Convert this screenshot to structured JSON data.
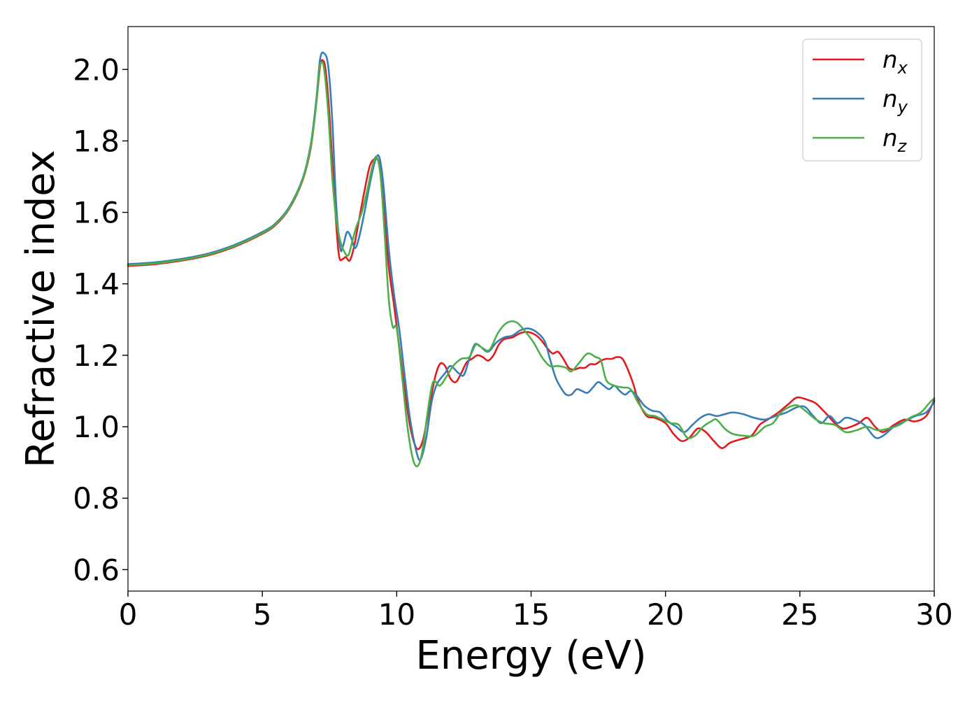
{
  "chart_data": {
    "type": "line",
    "xlabel": "Energy (eV)",
    "ylabel": "Refractive index",
    "xlim": [
      0,
      30
    ],
    "ylim": [
      0.54,
      2.12
    ],
    "xticks": [
      0,
      5,
      10,
      15,
      20,
      25,
      30
    ],
    "xtick_labels": [
      "0",
      "5",
      "10",
      "15",
      "20",
      "25",
      "30"
    ],
    "yticks": [
      0.6,
      0.8,
      1.0,
      1.2,
      1.4,
      1.6,
      1.8,
      2.0
    ],
    "ytick_labels": [
      "0.6",
      "0.8",
      "1.0",
      "1.2",
      "1.4",
      "1.6",
      "1.8",
      "2.0"
    ],
    "grid": false,
    "legend_position": "top-right",
    "series": [
      {
        "id": "nx",
        "symbol": "n",
        "subscript": "x",
        "color": "#e41a1c",
        "points": [
          [
            0,
            1.45
          ],
          [
            1,
            1.455
          ],
          [
            2,
            1.465
          ],
          [
            3,
            1.48
          ],
          [
            4,
            1.505
          ],
          [
            5,
            1.54
          ],
          [
            5.5,
            1.565
          ],
          [
            6,
            1.61
          ],
          [
            6.5,
            1.69
          ],
          [
            6.8,
            1.78
          ],
          [
            7.0,
            1.9
          ],
          [
            7.15,
            2.01
          ],
          [
            7.25,
            2.025
          ],
          [
            7.35,
            2.0
          ],
          [
            7.5,
            1.87
          ],
          [
            7.7,
            1.62
          ],
          [
            7.85,
            1.48
          ],
          [
            8.0,
            1.47
          ],
          [
            8.1,
            1.475
          ],
          [
            8.25,
            1.465
          ],
          [
            8.4,
            1.5
          ],
          [
            8.6,
            1.58
          ],
          [
            8.8,
            1.66
          ],
          [
            9.0,
            1.73
          ],
          [
            9.2,
            1.75
          ],
          [
            9.35,
            1.735
          ],
          [
            9.5,
            1.63
          ],
          [
            9.7,
            1.45
          ],
          [
            9.9,
            1.34
          ],
          [
            10.1,
            1.22
          ],
          [
            10.3,
            1.1
          ],
          [
            10.5,
            1.0
          ],
          [
            10.7,
            0.945
          ],
          [
            10.85,
            0.94
          ],
          [
            11.0,
            0.97
          ],
          [
            11.2,
            1.05
          ],
          [
            11.4,
            1.13
          ],
          [
            11.6,
            1.175
          ],
          [
            11.8,
            1.17
          ],
          [
            12.0,
            1.135
          ],
          [
            12.2,
            1.125
          ],
          [
            12.4,
            1.15
          ],
          [
            12.6,
            1.18
          ],
          [
            12.8,
            1.19
          ],
          [
            13.0,
            1.2
          ],
          [
            13.2,
            1.195
          ],
          [
            13.4,
            1.185
          ],
          [
            13.6,
            1.2
          ],
          [
            13.8,
            1.23
          ],
          [
            14.0,
            1.245
          ],
          [
            14.3,
            1.25
          ],
          [
            14.6,
            1.262
          ],
          [
            14.9,
            1.265
          ],
          [
            15.2,
            1.255
          ],
          [
            15.4,
            1.24
          ],
          [
            15.6,
            1.22
          ],
          [
            15.8,
            1.205
          ],
          [
            16.0,
            1.21
          ],
          [
            16.2,
            1.19
          ],
          [
            16.4,
            1.165
          ],
          [
            16.6,
            1.16
          ],
          [
            16.8,
            1.165
          ],
          [
            17.0,
            1.165
          ],
          [
            17.2,
            1.175
          ],
          [
            17.4,
            1.175
          ],
          [
            17.6,
            1.185
          ],
          [
            17.8,
            1.19
          ],
          [
            18.0,
            1.19
          ],
          [
            18.2,
            1.195
          ],
          [
            18.4,
            1.19
          ],
          [
            18.6,
            1.16
          ],
          [
            18.8,
            1.12
          ],
          [
            19.0,
            1.07
          ],
          [
            19.3,
            1.03
          ],
          [
            19.6,
            1.025
          ],
          [
            20.0,
            1.01
          ],
          [
            20.3,
            0.98
          ],
          [
            20.6,
            0.96
          ],
          [
            20.9,
            0.97
          ],
          [
            21.2,
            0.995
          ],
          [
            21.5,
            0.985
          ],
          [
            21.8,
            0.96
          ],
          [
            22.1,
            0.94
          ],
          [
            22.4,
            0.955
          ],
          [
            22.8,
            0.965
          ],
          [
            23.2,
            0.975
          ],
          [
            23.5,
            1.005
          ],
          [
            23.8,
            1.02
          ],
          [
            24.2,
            1.04
          ],
          [
            24.6,
            1.065
          ],
          [
            24.9,
            1.082
          ],
          [
            25.3,
            1.075
          ],
          [
            25.6,
            1.065
          ],
          [
            26.0,
            1.035
          ],
          [
            26.3,
            1.01
          ],
          [
            26.6,
            0.995
          ],
          [
            26.9,
            1.0
          ],
          [
            27.2,
            1.01
          ],
          [
            27.5,
            1.025
          ],
          [
            27.8,
            1.0
          ],
          [
            28.1,
            0.985
          ],
          [
            28.5,
            1.005
          ],
          [
            28.9,
            1.02
          ],
          [
            29.3,
            1.015
          ],
          [
            29.7,
            1.03
          ],
          [
            30.0,
            1.075
          ]
        ]
      },
      {
        "id": "ny",
        "symbol": "n",
        "subscript": "y",
        "color": "#377eb8",
        "points": [
          [
            0,
            1.455
          ],
          [
            1,
            1.46
          ],
          [
            2,
            1.47
          ],
          [
            3,
            1.485
          ],
          [
            4,
            1.51
          ],
          [
            5,
            1.545
          ],
          [
            5.5,
            1.57
          ],
          [
            6,
            1.615
          ],
          [
            6.5,
            1.695
          ],
          [
            6.8,
            1.79
          ],
          [
            7.0,
            1.91
          ],
          [
            7.15,
            2.03
          ],
          [
            7.3,
            2.045
          ],
          [
            7.45,
            2.01
          ],
          [
            7.6,
            1.86
          ],
          [
            7.75,
            1.62
          ],
          [
            7.9,
            1.5
          ],
          [
            8.0,
            1.505
          ],
          [
            8.15,
            1.545
          ],
          [
            8.3,
            1.53
          ],
          [
            8.45,
            1.5
          ],
          [
            8.6,
            1.53
          ],
          [
            8.8,
            1.6
          ],
          [
            9.0,
            1.68
          ],
          [
            9.2,
            1.745
          ],
          [
            9.35,
            1.755
          ],
          [
            9.5,
            1.68
          ],
          [
            9.7,
            1.5
          ],
          [
            9.9,
            1.37
          ],
          [
            10.1,
            1.27
          ],
          [
            10.3,
            1.14
          ],
          [
            10.5,
            1.02
          ],
          [
            10.75,
            0.925
          ],
          [
            10.9,
            0.91
          ],
          [
            11.1,
            0.97
          ],
          [
            11.3,
            1.07
          ],
          [
            11.5,
            1.12
          ],
          [
            11.8,
            1.15
          ],
          [
            12.0,
            1.17
          ],
          [
            12.3,
            1.15
          ],
          [
            12.5,
            1.145
          ],
          [
            12.7,
            1.19
          ],
          [
            12.9,
            1.23
          ],
          [
            13.1,
            1.225
          ],
          [
            13.4,
            1.21
          ],
          [
            13.7,
            1.235
          ],
          [
            14.0,
            1.25
          ],
          [
            14.3,
            1.255
          ],
          [
            14.6,
            1.27
          ],
          [
            14.9,
            1.275
          ],
          [
            15.2,
            1.265
          ],
          [
            15.5,
            1.24
          ],
          [
            15.7,
            1.19
          ],
          [
            15.9,
            1.14
          ],
          [
            16.1,
            1.11
          ],
          [
            16.3,
            1.09
          ],
          [
            16.5,
            1.09
          ],
          [
            16.7,
            1.105
          ],
          [
            16.9,
            1.1
          ],
          [
            17.1,
            1.095
          ],
          [
            17.3,
            1.11
          ],
          [
            17.5,
            1.125
          ],
          [
            17.7,
            1.115
          ],
          [
            17.9,
            1.105
          ],
          [
            18.1,
            1.115
          ],
          [
            18.3,
            1.1
          ],
          [
            18.5,
            1.09
          ],
          [
            18.7,
            1.1
          ],
          [
            18.9,
            1.09
          ],
          [
            19.2,
            1.06
          ],
          [
            19.5,
            1.045
          ],
          [
            19.8,
            1.04
          ],
          [
            20.1,
            1.015
          ],
          [
            20.4,
            1.0
          ],
          [
            20.7,
            0.985
          ],
          [
            21.0,
            1.005
          ],
          [
            21.3,
            1.025
          ],
          [
            21.6,
            1.035
          ],
          [
            21.9,
            1.03
          ],
          [
            22.2,
            1.035
          ],
          [
            22.5,
            1.04
          ],
          [
            22.9,
            1.035
          ],
          [
            23.3,
            1.025
          ],
          [
            23.7,
            1.02
          ],
          [
            24.1,
            1.03
          ],
          [
            24.5,
            1.04
          ],
          [
            24.9,
            1.055
          ],
          [
            25.2,
            1.055
          ],
          [
            25.5,
            1.03
          ],
          [
            25.8,
            1.01
          ],
          [
            26.1,
            1.03
          ],
          [
            26.4,
            1.01
          ],
          [
            26.7,
            1.025
          ],
          [
            27.0,
            1.02
          ],
          [
            27.4,
            1.005
          ],
          [
            27.8,
            0.97
          ],
          [
            28.1,
            0.975
          ],
          [
            28.5,
            1.0
          ],
          [
            28.9,
            1.015
          ],
          [
            29.3,
            1.03
          ],
          [
            29.7,
            1.04
          ],
          [
            30.0,
            1.07
          ]
        ]
      },
      {
        "id": "nz",
        "symbol": "n",
        "subscript": "z",
        "color": "#4daf4a",
        "points": [
          [
            0,
            1.452
          ],
          [
            1,
            1.457
          ],
          [
            2,
            1.467
          ],
          [
            3,
            1.482
          ],
          [
            4,
            1.507
          ],
          [
            5,
            1.542
          ],
          [
            5.5,
            1.567
          ],
          [
            6,
            1.612
          ],
          [
            6.5,
            1.692
          ],
          [
            6.8,
            1.785
          ],
          [
            7.0,
            1.9
          ],
          [
            7.12,
            2.0
          ],
          [
            7.2,
            2.02
          ],
          [
            7.3,
            2.0
          ],
          [
            7.45,
            1.88
          ],
          [
            7.6,
            1.7
          ],
          [
            7.75,
            1.58
          ],
          [
            7.9,
            1.52
          ],
          [
            8.05,
            1.49
          ],
          [
            8.2,
            1.48
          ],
          [
            8.35,
            1.52
          ],
          [
            8.5,
            1.56
          ],
          [
            8.7,
            1.6
          ],
          [
            8.9,
            1.66
          ],
          [
            9.1,
            1.73
          ],
          [
            9.25,
            1.755
          ],
          [
            9.4,
            1.7
          ],
          [
            9.55,
            1.54
          ],
          [
            9.7,
            1.36
          ],
          [
            9.85,
            1.28
          ],
          [
            10.0,
            1.275
          ],
          [
            10.2,
            1.14
          ],
          [
            10.4,
            1.0
          ],
          [
            10.6,
            0.91
          ],
          [
            10.78,
            0.89
          ],
          [
            10.95,
            0.93
          ],
          [
            11.15,
            1.04
          ],
          [
            11.35,
            1.125
          ],
          [
            11.6,
            1.115
          ],
          [
            11.85,
            1.14
          ],
          [
            12.1,
            1.17
          ],
          [
            12.4,
            1.19
          ],
          [
            12.7,
            1.195
          ],
          [
            12.95,
            1.23
          ],
          [
            13.2,
            1.22
          ],
          [
            13.45,
            1.215
          ],
          [
            13.75,
            1.26
          ],
          [
            14.0,
            1.285
          ],
          [
            14.25,
            1.295
          ],
          [
            14.5,
            1.29
          ],
          [
            14.8,
            1.265
          ],
          [
            15.1,
            1.235
          ],
          [
            15.4,
            1.195
          ],
          [
            15.7,
            1.17
          ],
          [
            16.0,
            1.17
          ],
          [
            16.3,
            1.165
          ],
          [
            16.5,
            1.155
          ],
          [
            16.8,
            1.18
          ],
          [
            17.1,
            1.205
          ],
          [
            17.4,
            1.195
          ],
          [
            17.6,
            1.185
          ],
          [
            17.8,
            1.13
          ],
          [
            18.1,
            1.115
          ],
          [
            18.4,
            1.11
          ],
          [
            18.7,
            1.105
          ],
          [
            19.0,
            1.065
          ],
          [
            19.3,
            1.035
          ],
          [
            19.6,
            1.03
          ],
          [
            19.9,
            1.02
          ],
          [
            20.2,
            1.01
          ],
          [
            20.5,
            1.005
          ],
          [
            20.8,
            0.97
          ],
          [
            21.1,
            0.975
          ],
          [
            21.4,
            1.0
          ],
          [
            21.7,
            1.015
          ],
          [
            21.9,
            1.02
          ],
          [
            22.2,
            0.995
          ],
          [
            22.5,
            0.98
          ],
          [
            22.9,
            0.975
          ],
          [
            23.3,
            0.975
          ],
          [
            23.7,
            1.0
          ],
          [
            24.0,
            1.01
          ],
          [
            24.3,
            1.04
          ],
          [
            24.6,
            1.055
          ],
          [
            24.9,
            1.06
          ],
          [
            25.2,
            1.045
          ],
          [
            25.6,
            1.02
          ],
          [
            25.9,
            1.01
          ],
          [
            26.3,
            1.005
          ],
          [
            26.7,
            0.985
          ],
          [
            27.1,
            0.99
          ],
          [
            27.5,
            1.0
          ],
          [
            27.9,
            0.99
          ],
          [
            28.3,
            0.995
          ],
          [
            28.7,
            1.005
          ],
          [
            29.1,
            1.025
          ],
          [
            29.5,
            1.04
          ],
          [
            29.8,
            1.065
          ],
          [
            30.0,
            1.08
          ]
        ]
      }
    ]
  }
}
